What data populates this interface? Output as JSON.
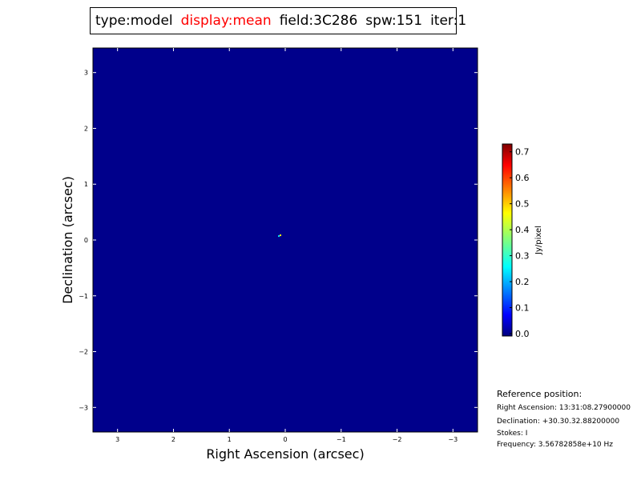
{
  "header": {
    "type": "type:model",
    "display": "display:mean",
    "field": "field:3C286",
    "spw": "spw:151",
    "iter": "iter:1",
    "display_color": "#ff0000"
  },
  "reference": {
    "title": "Reference position:",
    "ra": "Right Ascension: 13:31:08.27900000",
    "dec": "Declination: +30.30.32.88200000",
    "stokes": "Stokes: I",
    "freq": "Frequency: 3.56782858e+10 Hz"
  },
  "chart_data": {
    "type": "heatmap",
    "xlabel": "Right Ascension (arcsec)",
    "ylabel": "Declination (arcsec)",
    "xlim": [
      3.44,
      -3.44
    ],
    "ylim": [
      -3.44,
      3.44
    ],
    "xticks": [
      3,
      2,
      1,
      0,
      -1,
      -2,
      -3
    ],
    "xtick_labels": [
      "3",
      "2",
      "1",
      "0",
      "−1",
      "−2",
      "−3"
    ],
    "yticks": [
      3,
      2,
      1,
      0,
      -1,
      -2,
      -3
    ],
    "ytick_labels": [
      "3",
      "2",
      "1",
      "0",
      "−1",
      "−2",
      "−3"
    ],
    "colormap": "jet",
    "background_color": "#00008b",
    "sources": [
      {
        "x": 0.1,
        "y": 0.07,
        "value": 0.5
      }
    ],
    "colorbar": {
      "label": "Jy/pixel",
      "range": [
        0.0,
        0.73
      ],
      "ticks": [
        0.0,
        0.1,
        0.2,
        0.3,
        0.4,
        0.5,
        0.6,
        0.7
      ],
      "tick_labels": [
        "0.0",
        "0.1",
        "0.2",
        "0.3",
        "0.4",
        "0.5",
        "0.6",
        "0.7"
      ]
    }
  }
}
